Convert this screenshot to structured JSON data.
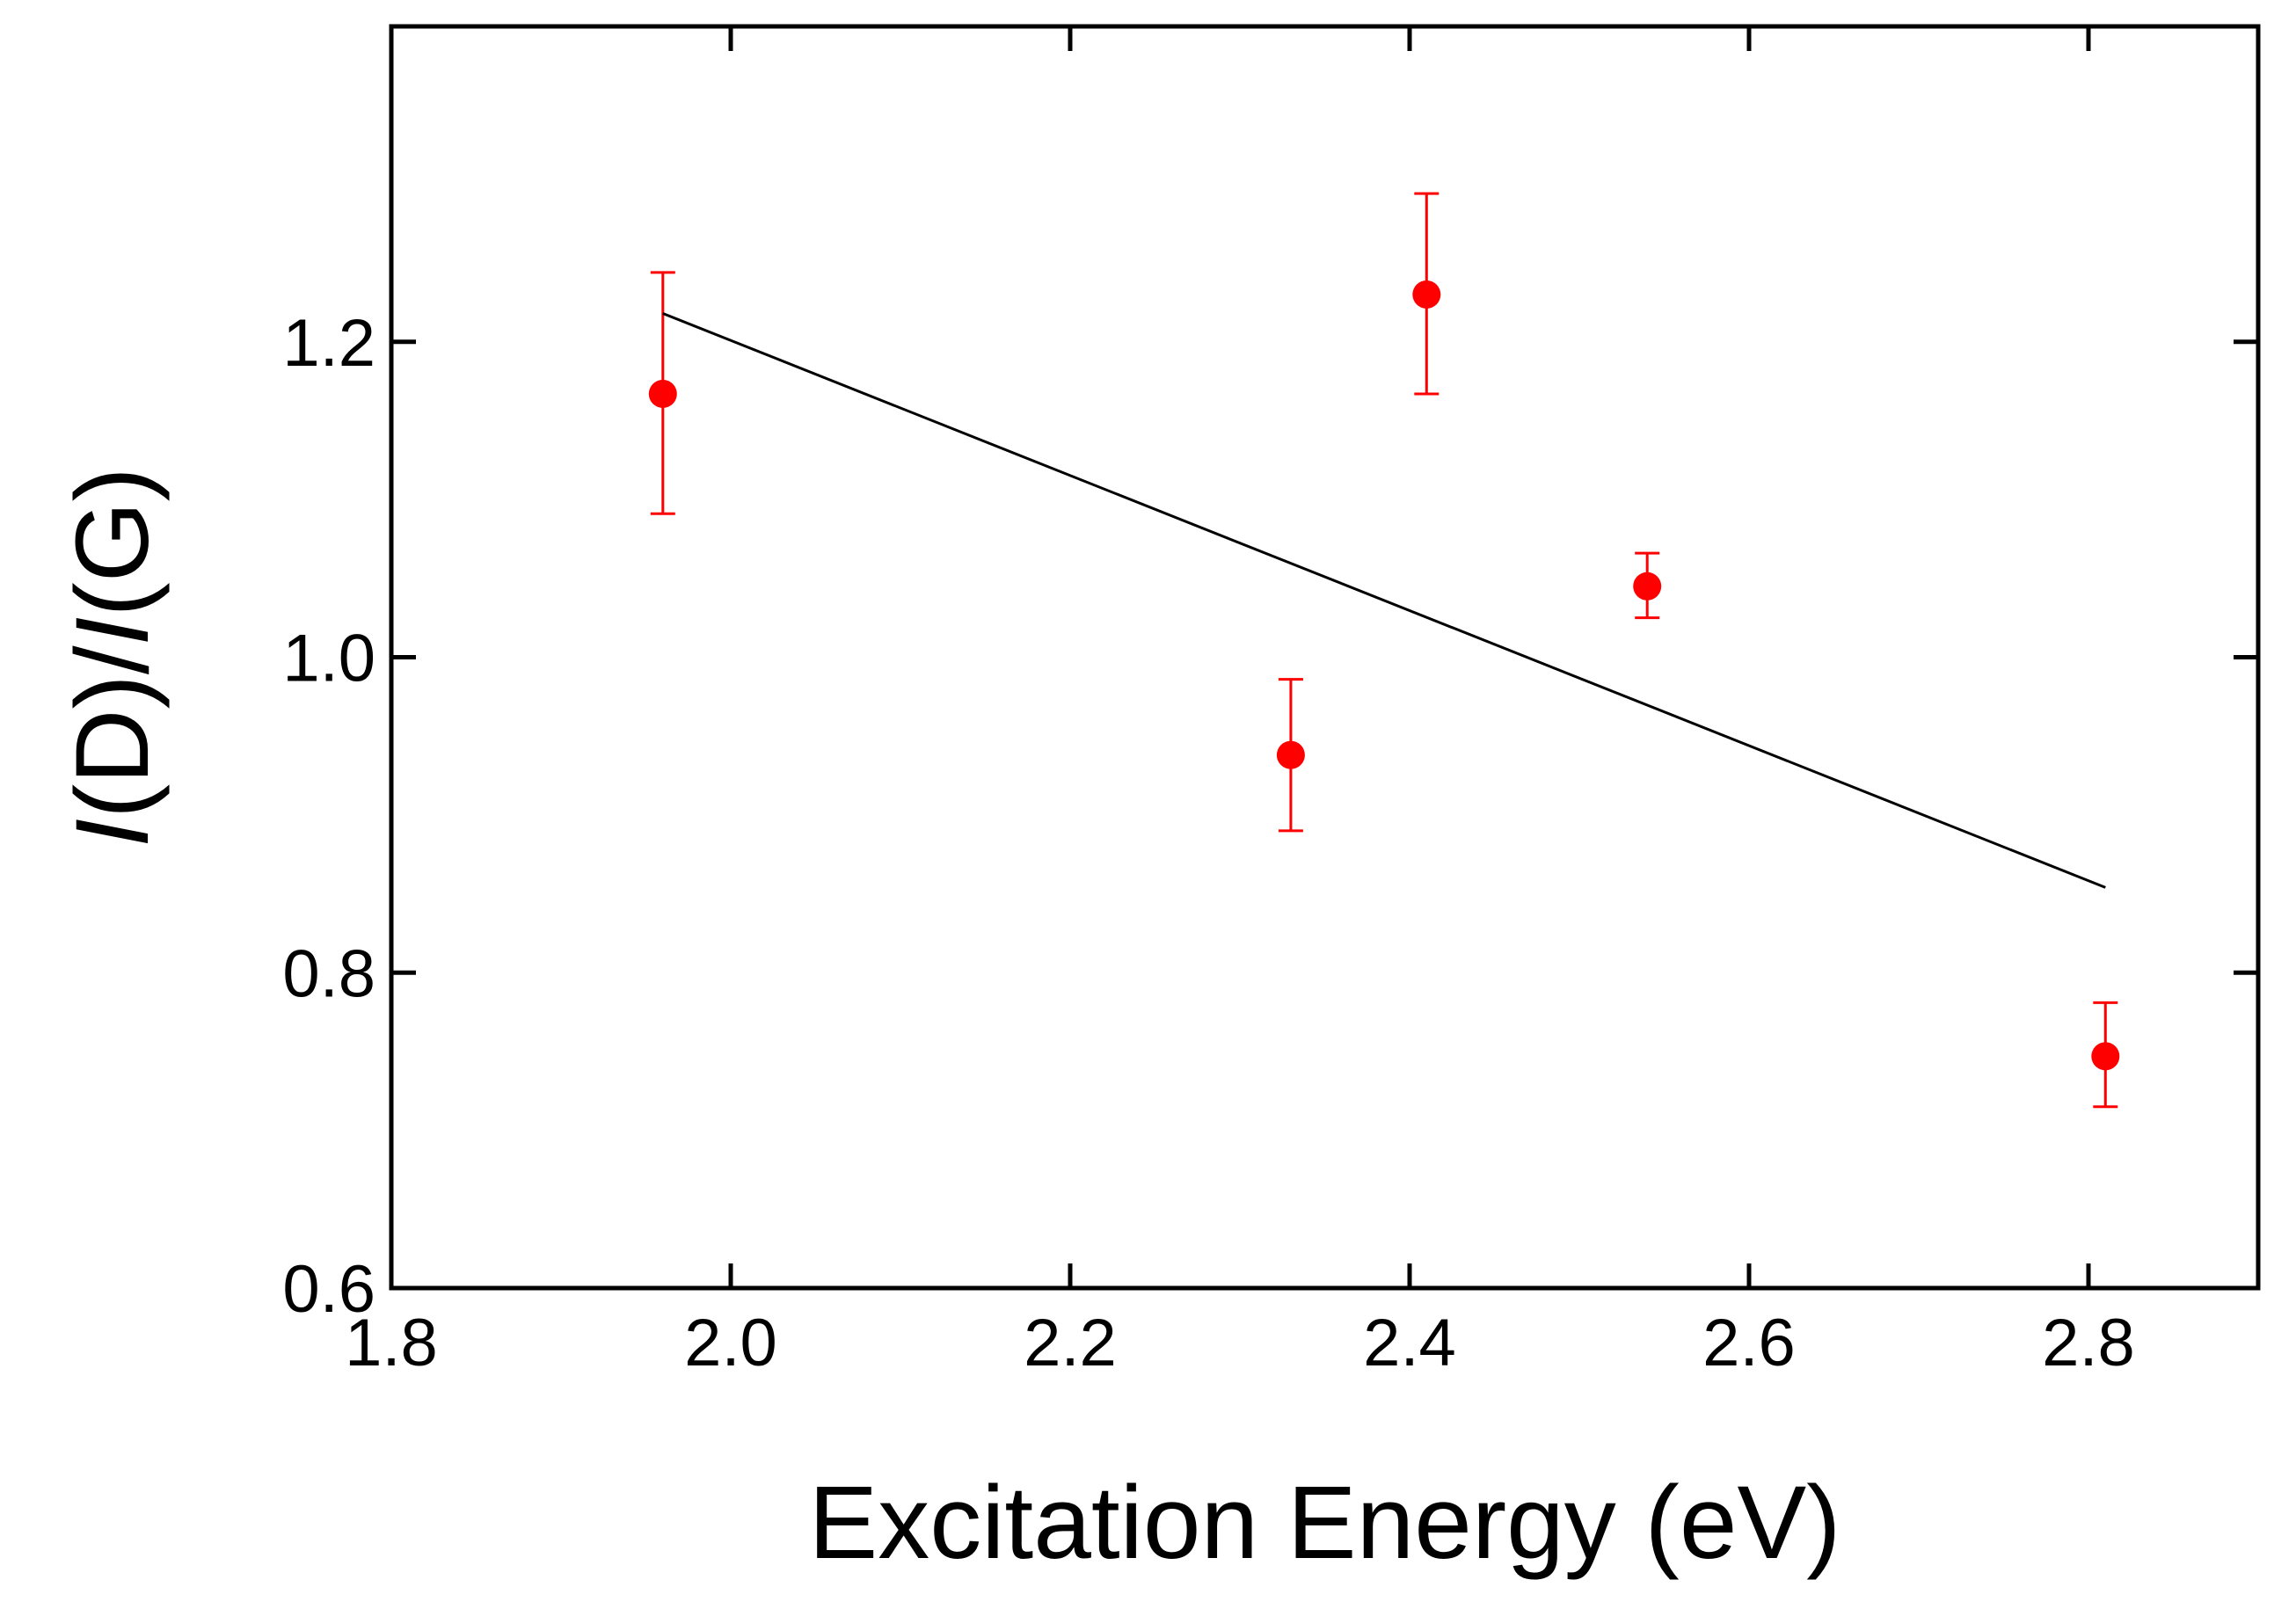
{
  "chart_data": {
    "type": "scatter",
    "title": "",
    "xlabel": "Excitation Energy (eV)",
    "ylabel_parts": [
      "I",
      "(D)/",
      "I",
      "(G)"
    ],
    "xlim": [
      1.8,
      2.9
    ],
    "ylim": [
      0.6,
      1.4
    ],
    "xticks": [
      1.8,
      2.0,
      2.2,
      2.4,
      2.6,
      2.8
    ],
    "xtick_labels": [
      "1.8",
      "2.0",
      "2.2",
      "2.4",
      "2.6",
      "2.8"
    ],
    "yticks": [
      0.6,
      0.8,
      1.0,
      1.2
    ],
    "ytick_labels": [
      "0.6",
      "0.8",
      "1.0",
      "1.2"
    ],
    "grid": false,
    "series": [
      {
        "name": "data",
        "kind": "scatter-errorbar",
        "color": "#ff0000",
        "points": [
          {
            "x": 1.96,
            "y": 1.167,
            "err_low": 1.091,
            "err_high": 1.244
          },
          {
            "x": 2.33,
            "y": 0.938,
            "err_low": 0.89,
            "err_high": 0.986
          },
          {
            "x": 2.41,
            "y": 1.23,
            "err_low": 1.167,
            "err_high": 1.294
          },
          {
            "x": 2.54,
            "y": 1.045,
            "err_low": 1.025,
            "err_high": 1.066
          },
          {
            "x": 2.81,
            "y": 0.747,
            "err_low": 0.715,
            "err_high": 0.781
          }
        ]
      },
      {
        "name": "fit",
        "kind": "line",
        "color": "#000000",
        "x": [
          1.96,
          2.81
        ],
        "y": [
          1.218,
          0.854
        ]
      }
    ]
  }
}
